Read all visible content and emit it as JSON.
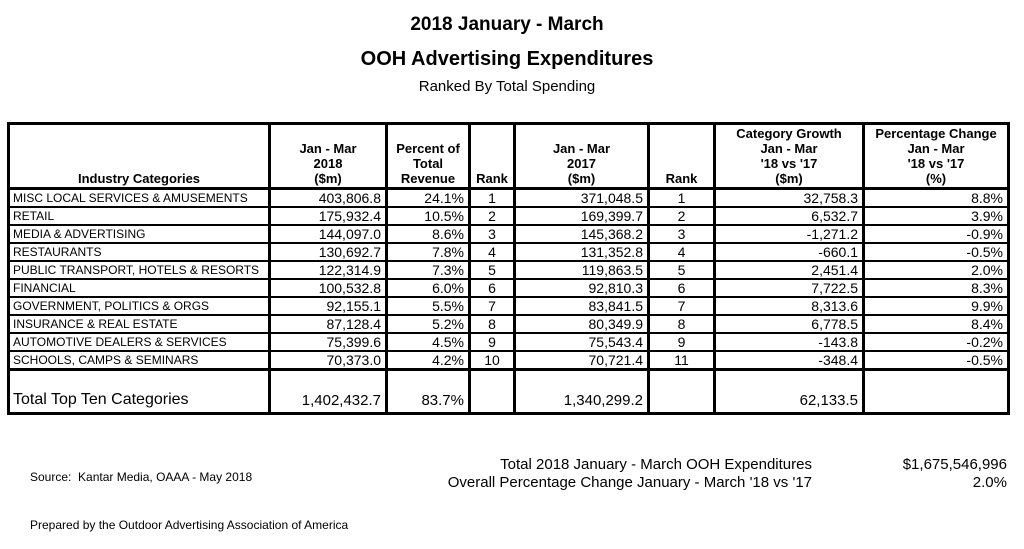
{
  "title": {
    "line1": "2018 January - March",
    "line2": "OOH Advertising Expenditures",
    "line3": "Ranked By Total Spending"
  },
  "table": {
    "headers": [
      "Industry Categories",
      "Jan - Mar\n2018\n($m)",
      "Percent of\nTotal\nRevenue",
      "Rank",
      "Jan - Mar\n2017\n($m)",
      "Rank",
      "Category Growth\nJan - Mar\n'18 vs '17\n($m)",
      "Percentage Change\nJan - Mar\n'18 vs '17\n(%)"
    ],
    "rows": [
      {
        "category": "MISC LOCAL SERVICES & AMUSEMENTS",
        "y2018": "403,806.8",
        "pct": "24.1%",
        "rank2018": "1",
        "y2017": "371,048.5",
        "rank2017": "1",
        "growth": "32,758.3",
        "change": "8.8%"
      },
      {
        "category": "RETAIL",
        "y2018": "175,932.4",
        "pct": "10.5%",
        "rank2018": "2",
        "y2017": "169,399.7",
        "rank2017": "2",
        "growth": "6,532.7",
        "change": "3.9%"
      },
      {
        "category": "MEDIA & ADVERTISING",
        "y2018": "144,097.0",
        "pct": "8.6%",
        "rank2018": "3",
        "y2017": "145,368.2",
        "rank2017": "3",
        "growth": "-1,271.2",
        "change": "-0.9%"
      },
      {
        "category": "RESTAURANTS",
        "y2018": "130,692.7",
        "pct": "7.8%",
        "rank2018": "4",
        "y2017": "131,352.8",
        "rank2017": "4",
        "growth": "-660.1",
        "change": "-0.5%"
      },
      {
        "category": "PUBLIC TRANSPORT, HOTELS & RESORTS",
        "y2018": "122,314.9",
        "pct": "7.3%",
        "rank2018": "5",
        "y2017": "119,863.5",
        "rank2017": "5",
        "growth": "2,451.4",
        "change": "2.0%"
      },
      {
        "category": "FINANCIAL",
        "y2018": "100,532.8",
        "pct": "6.0%",
        "rank2018": "6",
        "y2017": "92,810.3",
        "rank2017": "6",
        "growth": "7,722.5",
        "change": "8.3%"
      },
      {
        "category": "GOVERNMENT, POLITICS & ORGS",
        "y2018": "92,155.1",
        "pct": "5.5%",
        "rank2018": "7",
        "y2017": "83,841.5",
        "rank2017": "7",
        "growth": "8,313.6",
        "change": "9.9%"
      },
      {
        "category": "INSURANCE & REAL ESTATE",
        "y2018": "87,128.4",
        "pct": "5.2%",
        "rank2018": "8",
        "y2017": "80,349.9",
        "rank2017": "8",
        "growth": "6,778.5",
        "change": "8.4%"
      },
      {
        "category": "AUTOMOTIVE DEALERS & SERVICES",
        "y2018": "75,399.6",
        "pct": "4.5%",
        "rank2018": "9",
        "y2017": "75,543.4",
        "rank2017": "9",
        "growth": "-143.8",
        "change": "-0.2%"
      },
      {
        "category": "SCHOOLS, CAMPS & SEMINARS",
        "y2018": "70,373.0",
        "pct": "4.2%",
        "rank2018": "10",
        "y2017": "70,721.4",
        "rank2017": "11",
        "growth": "-348.4",
        "change": "-0.5%"
      }
    ],
    "total": {
      "label": "Total Top Ten Categories",
      "y2018": "1,402,432.7",
      "pct": "83.7%",
      "rank2018": "",
      "y2017": "1,340,299.2",
      "rank2017": "",
      "growth": "62,133.5",
      "change": ""
    }
  },
  "footer": {
    "source_line1": "Source:  Kantar Media, OAAA - May 2018",
    "source_line2": "Prepared by the Outdoor Advertising Association of America",
    "summary": [
      {
        "label": "Total 2018 January - March OOH Expenditures",
        "value": "$1,675,546,996"
      },
      {
        "label": "Overall Percentage Change January - March '18 vs '17",
        "value": "2.0%"
      }
    ]
  },
  "colors": {
    "text": "#000000",
    "background": "#ffffff",
    "border": "#000000"
  }
}
